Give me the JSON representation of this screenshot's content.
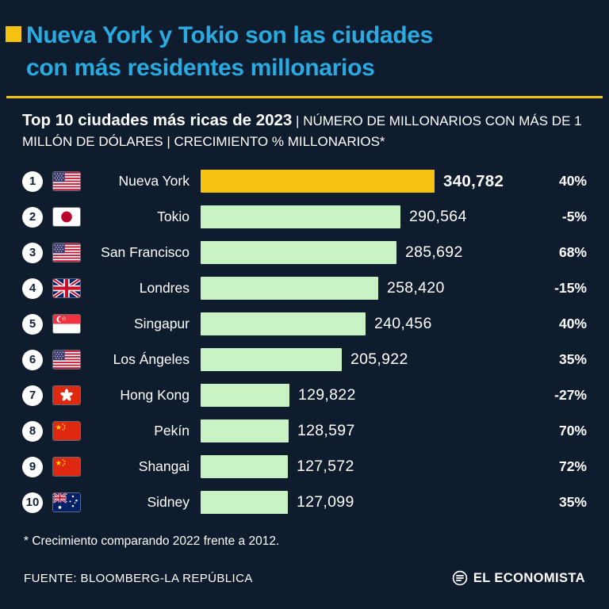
{
  "header": {
    "title_line1": "Nueva York y Tokio son las ciudades",
    "title_line2": "con más residentes millonarios"
  },
  "subtitle": {
    "bold": "Top 10 ciudades más ricas de 2023",
    "rest": " | NÚMERO DE MILLONARIOS CON MÁS DE 1 MILLÓN DE DÓLARES | CRECIMIENTO % MILLONARIOS*"
  },
  "chart_data": {
    "type": "bar",
    "orientation": "horizontal",
    "title": "Top 10 ciudades más ricas de 2023",
    "subtitle": "NÚMERO DE MILLONARIOS CON MÁS DE 1 MILLÓN DE DÓLARES | CRECIMIENTO % MILLONARIOS*",
    "categories": [
      "Nueva York",
      "Tokio",
      "San Francisco",
      "Londres",
      "Singapur",
      "Los Ángeles",
      "Hong Kong",
      "Pekín",
      "Shangai",
      "Sidney"
    ],
    "values": [
      340782,
      290564,
      285692,
      258420,
      240456,
      205922,
      129822,
      128597,
      127572,
      127099
    ],
    "growth_pct": [
      40,
      -5,
      68,
      -15,
      40,
      35,
      -27,
      70,
      72,
      35
    ],
    "xlim": [
      0,
      340782
    ],
    "highlight_index": 0,
    "grid": false,
    "legend": false
  },
  "rows": [
    {
      "rank": "1",
      "flag": "us",
      "city": "Nueva York",
      "value": "340,782",
      "growth": "40%",
      "highlight": true
    },
    {
      "rank": "2",
      "flag": "jp",
      "city": "Tokio",
      "value": "290,564",
      "growth": "-5%",
      "highlight": false
    },
    {
      "rank": "3",
      "flag": "us",
      "city": "San Francisco",
      "value": "285,692",
      "growth": "68%",
      "highlight": false
    },
    {
      "rank": "4",
      "flag": "uk",
      "city": "Londres",
      "value": "258,420",
      "growth": "-15%",
      "highlight": false
    },
    {
      "rank": "5",
      "flag": "sg",
      "city": "Singapur",
      "value": "240,456",
      "growth": "40%",
      "highlight": false
    },
    {
      "rank": "6",
      "flag": "us",
      "city": "Los Ángeles",
      "value": "205,922",
      "growth": "35%",
      "highlight": false
    },
    {
      "rank": "7",
      "flag": "hk",
      "city": "Hong Kong",
      "value": "129,822",
      "growth": "-27%",
      "highlight": false
    },
    {
      "rank": "8",
      "flag": "cn",
      "city": "Pekín",
      "value": "128,597",
      "growth": "70%",
      "highlight": false
    },
    {
      "rank": "9",
      "flag": "cn",
      "city": "Shangai",
      "value": "127,572",
      "growth": "72%",
      "highlight": false
    },
    {
      "rank": "10",
      "flag": "au",
      "city": "Sidney",
      "value": "127,099",
      "growth": "35%",
      "highlight": false
    }
  ],
  "footnote": "* Crecimiento comparando 2022 frente a 2012.",
  "footer": {
    "source": "FUENTE: BLOOMBERG-LA REPÚBLICA",
    "brand": "EL ECONOMISTA"
  },
  "colors": {
    "background": "#0f1c2e",
    "title_accent": "#29abe2",
    "accent_yellow": "#f5c211",
    "bar_green": "#c9f2c5",
    "text": "#ffffff"
  }
}
